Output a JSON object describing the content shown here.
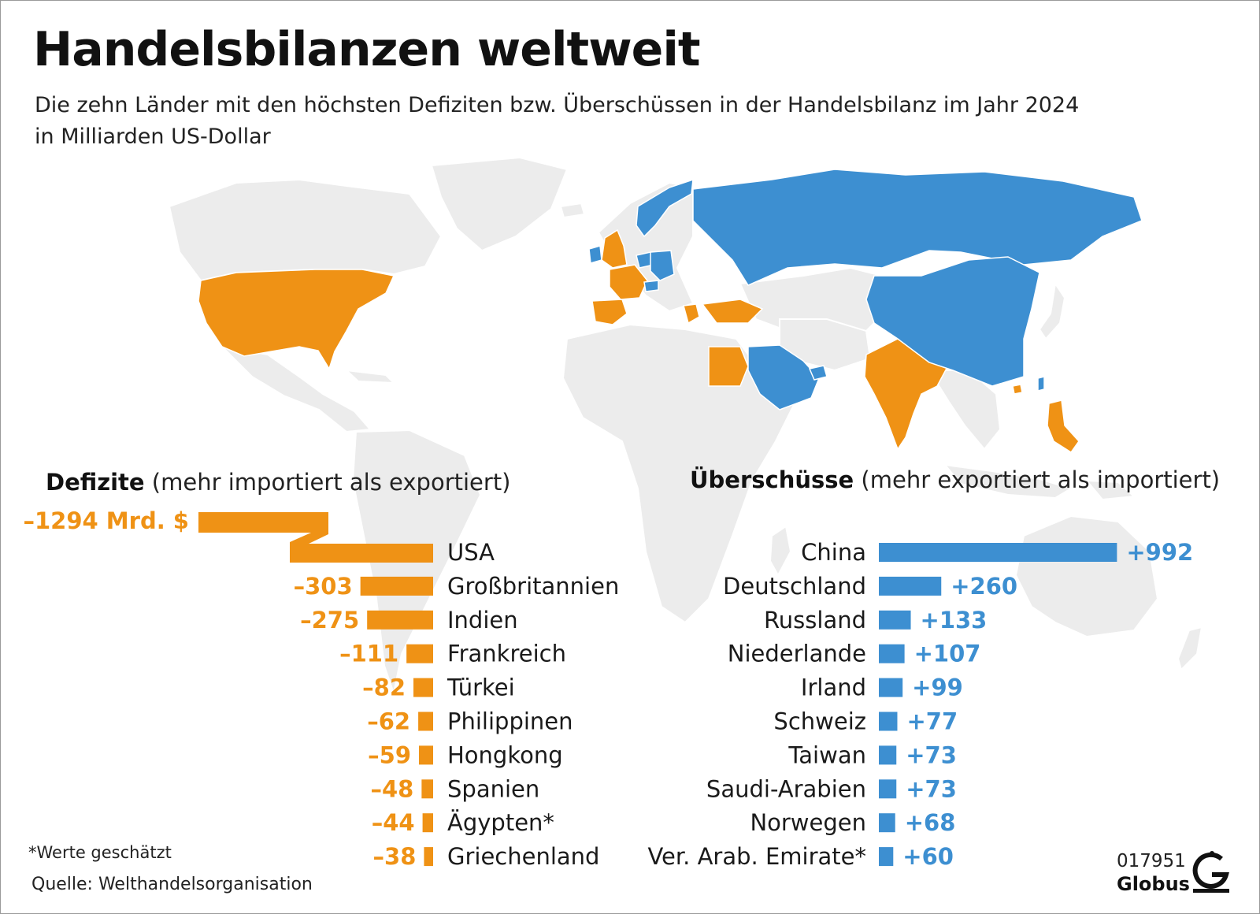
{
  "title": "Handelsbilanzen weltweit",
  "subtitle_line1": "Die zehn Länder mit den höchsten Defiziten bzw. Überschüssen in der Handelsbilanz im Jahr 2024",
  "subtitle_line2": "in Milliarden US-Dollar",
  "colors": {
    "deficit": "#ef9215",
    "surplus": "#3d8fd1",
    "land": "#ececec"
  },
  "map_icon": "world-map-icon",
  "chart_data": {
    "type": "bar",
    "unit": "Milliarden US-Dollar",
    "deficits": {
      "heading_bold": "Defizite",
      "heading_rest": " (mehr importiert als exportiert)",
      "axis_break": true,
      "first_label": "–1294 Mrd. $",
      "countries": [
        "USA",
        "Großbritannien",
        "Indien",
        "Frankreich",
        "Türkei",
        "Philippinen",
        "Hongkong",
        "Spanien",
        "Ägypten*",
        "Griechenland"
      ],
      "values": [
        -1294,
        -303,
        -275,
        -111,
        -82,
        -62,
        -59,
        -48,
        -44,
        -38
      ],
      "labels": [
        "–1294 Mrd. $",
        "–303",
        "–275",
        "–111",
        "–82",
        "–62",
        "–59",
        "–48",
        "–44",
        "–38"
      ]
    },
    "surpluses": {
      "heading_bold": "Überschüsse",
      "heading_rest": " (mehr exportiert als importiert)",
      "countries": [
        "China",
        "Deutschland",
        "Russland",
        "Niederlande",
        "Irland",
        "Schweiz",
        "Taiwan",
        "Saudi-Arabien",
        "Norwegen",
        "Ver. Arab. Emirate*"
      ],
      "values": [
        992,
        260,
        133,
        107,
        99,
        77,
        73,
        73,
        68,
        60
      ],
      "labels": [
        "+992",
        "+260",
        "+133",
        "+107",
        "+99",
        "+77",
        "+73",
        "+73",
        "+68",
        "+60"
      ]
    }
  },
  "footnote": "*Werte geschätzt",
  "source": "Quelle: Welthandelsorganisation",
  "code": "017951",
  "brand": "Globus",
  "logo_icon": "globus-logo-icon"
}
